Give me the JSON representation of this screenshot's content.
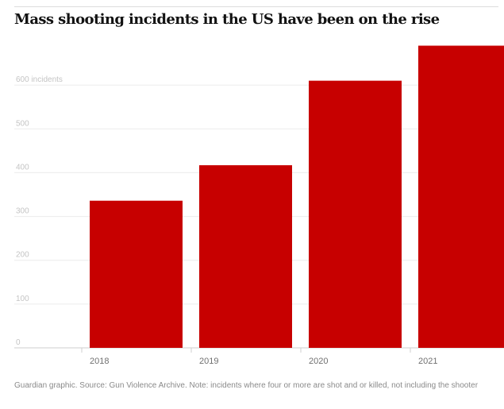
{
  "chart_data": {
    "type": "bar",
    "title": "Mass shooting incidents in the US have been on the rise",
    "categories": [
      "2018",
      "2019",
      "2020",
      "2021"
    ],
    "values": [
      336,
      417,
      610,
      690
    ],
    "ylim": [
      0,
      700
    ],
    "yticks": [
      {
        "value": 0,
        "label": "0"
      },
      {
        "value": 100,
        "label": "100"
      },
      {
        "value": 200,
        "label": "200"
      },
      {
        "value": 300,
        "label": "300"
      },
      {
        "value": 400,
        "label": "400"
      },
      {
        "value": 500,
        "label": "500"
      },
      {
        "value": 600,
        "label": "600 incidents"
      }
    ],
    "grid": true,
    "bar_color": "#c70000",
    "grid_color": "#ececec",
    "axis_color": "#cfcfcf"
  },
  "footnote": "Guardian graphic. Source: Gun Violence Archive. Note: incidents where four or more are shot and or killed, not including the shooter"
}
